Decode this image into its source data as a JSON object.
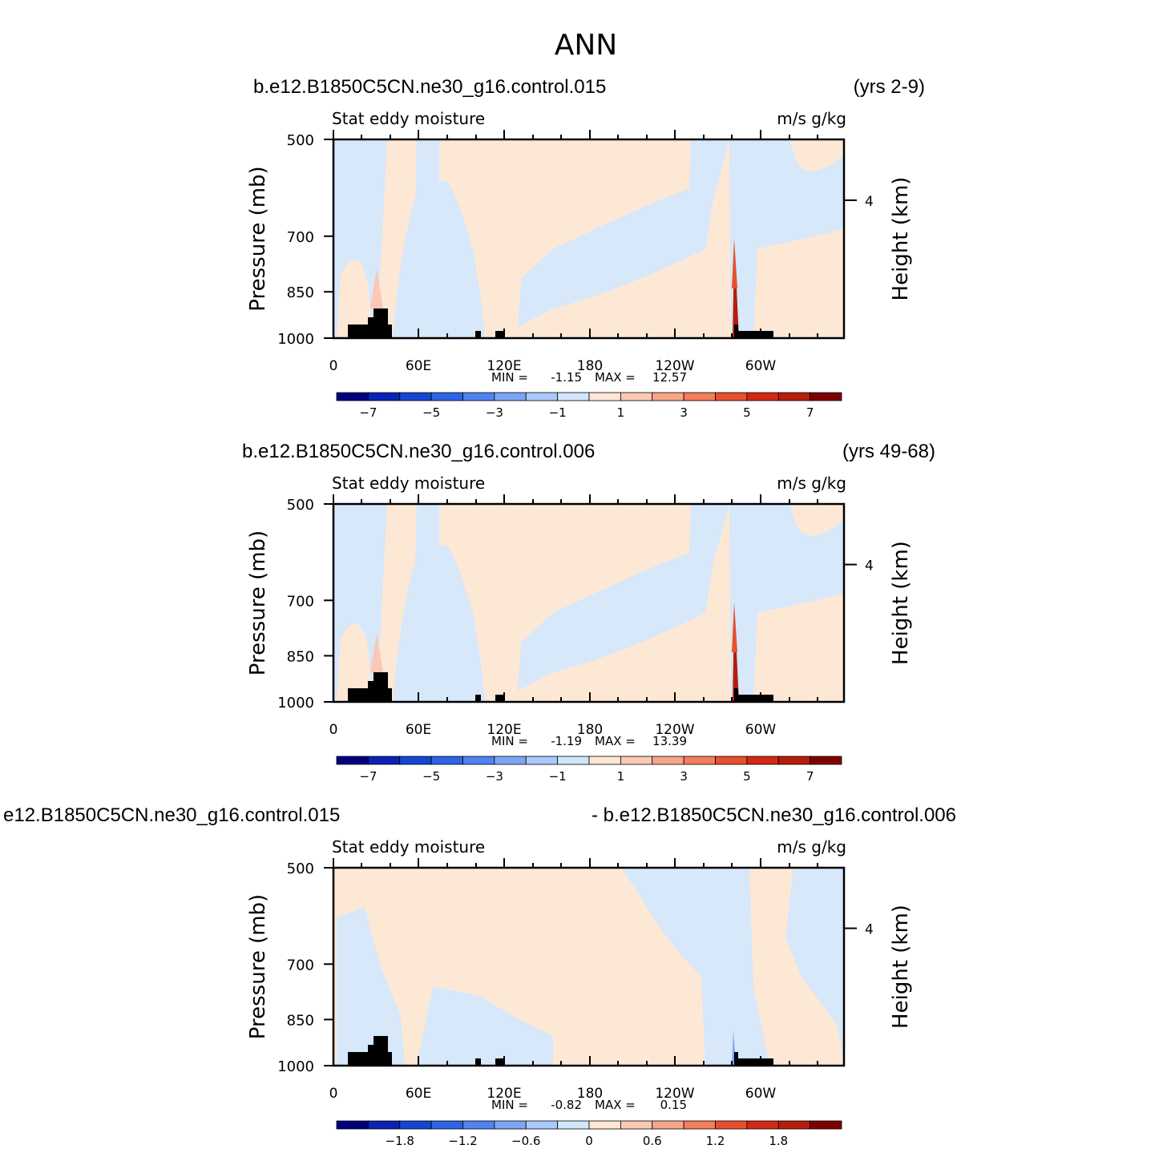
{
  "figure": {
    "title": "ANN"
  },
  "chart_data": [
    {
      "type": "heatmap",
      "case_label": "b.e12.B1850C5CN.ne30_g16.control.015",
      "years_label": "(yrs 2-9)",
      "left_string": "Stat eddy moisture",
      "right_string": "m/s g/kg",
      "ylabel": "Pressure (mb)",
      "ylabel_right": "Height (km)",
      "x_ticks": [
        "0",
        "60E",
        "120E",
        "180",
        "120W",
        "60W"
      ],
      "y_ticks": [
        "500",
        "700",
        "850",
        "1000"
      ],
      "y_right_ticks": [
        "4"
      ],
      "min_label": "MIN =",
      "min_value": "-1.15",
      "max_label": "MAX =",
      "max_value": "12.57",
      "colorbar_labels": [
        "−7",
        "−5",
        "−3",
        "−1",
        "1",
        "3",
        "5",
        "7"
      ]
    },
    {
      "type": "heatmap",
      "case_label": "b.e12.B1850C5CN.ne30_g16.control.006",
      "years_label": "(yrs 49-68)",
      "left_string": "Stat eddy moisture",
      "right_string": "m/s g/kg",
      "ylabel": "Pressure (mb)",
      "ylabel_right": "Height (km)",
      "x_ticks": [
        "0",
        "60E",
        "120E",
        "180",
        "120W",
        "60W"
      ],
      "y_ticks": [
        "500",
        "700",
        "850",
        "1000"
      ],
      "y_right_ticks": [
        "4"
      ],
      "min_label": "MIN =",
      "min_value": "-1.19",
      "max_label": "MAX =",
      "max_value": "13.39",
      "colorbar_labels": [
        "−7",
        "−5",
        "−3",
        "−1",
        "1",
        "3",
        "5",
        "7"
      ]
    },
    {
      "type": "heatmap",
      "case_label": "e12.B1850C5CN.ne30_g16.control.015",
      "years_label": "- b.e12.B1850C5CN.ne30_g16.control.006",
      "left_string": "Stat eddy moisture",
      "right_string": "m/s g/kg",
      "ylabel": "Pressure (mb)",
      "ylabel_right": "Height (km)",
      "x_ticks": [
        "0",
        "60E",
        "120E",
        "180",
        "120W",
        "60W"
      ],
      "y_ticks": [
        "500",
        "700",
        "850",
        "1000"
      ],
      "y_right_ticks": [
        "4"
      ],
      "min_label": "MIN =",
      "min_value": "-0.82",
      "max_label": "MAX =",
      "max_value": "0.15",
      "colorbar_labels": [
        "−1.8",
        "−1.2",
        "−0.6",
        "0",
        "0.6",
        "1.2",
        "1.8"
      ]
    }
  ],
  "colorbar_colors": [
    "#00007f",
    "#0a23b5",
    "#1446d2",
    "#2d64e6",
    "#5082f0",
    "#7da5f5",
    "#aac8fa",
    "#d2e6fa",
    "#fde6d6",
    "#fac8b4",
    "#f7a587",
    "#f47d5a",
    "#e6502d",
    "#d22814",
    "#b41e0a",
    "#7f0000"
  ]
}
